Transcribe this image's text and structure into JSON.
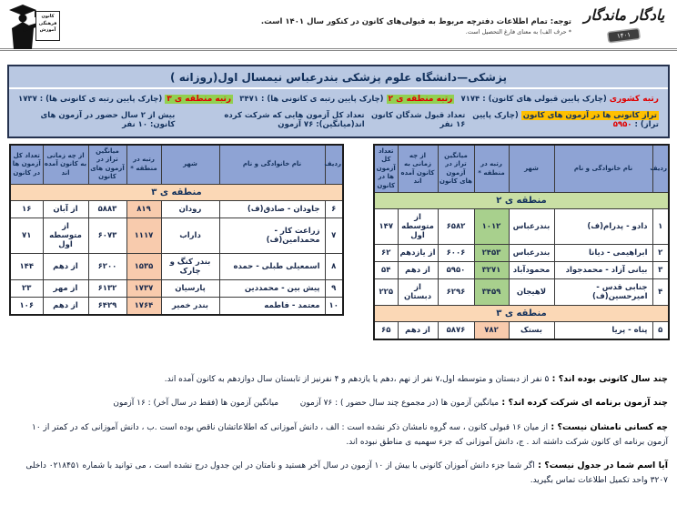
{
  "brand": {
    "title": "یادگار ماندگار",
    "year_badge": "۱۴۰۱",
    "logo_caption": "کانون فرهنگی آموزش"
  },
  "header_note": {
    "main": "توجه: تمام اطلاعات دفترچه مربوط به قبولی‌های کانون در کنکور سال ۱۴۰۱ است.",
    "sub": "* حرف الف) به معنای فارغ التحصیل است."
  },
  "title_bar": "پزشکی—دانشگاه علوم پزشکی بندرعباس نیمسال اول(روزانه )",
  "stats": {
    "national_rank": {
      "label": "رتبه کشوری",
      "desc": "(چارک پایین قبولی های کانون) :",
      "value": "۷۱۷۴"
    },
    "region2_rank": {
      "label": "رتبه منطقه ی ۲",
      "desc": "(چارک پایین رتبه ی کانونی ها) :",
      "value": "۳۴۷۱"
    },
    "region3_rank": {
      "label": "رتبه منطقه ی ۳",
      "desc": "(چارک پایین رتبه ی کانونی ها) :",
      "value": "۱۷۳۷"
    },
    "taraz": {
      "label": "تراز کانونی ها در آزمون های کانون",
      "desc": "(چارک پایین تراز) :",
      "value": "۵۹۵۰"
    },
    "accepted_count": "تعداد قبول شدگان کانون ۱۶ نفر",
    "exams_avg": "تعداد کل آزمون هایی که شرکت کرده اند(میانگین): ۷۶ آزمون",
    "presence": "بیش از ۲ سال حضور در آزمون های کانون: ۱۰ نفر"
  },
  "table": {
    "headers": [
      "ردیف",
      "نام خانوادگی و نام",
      "شهر",
      "رتبه در منطقه *",
      "میانگین تراز در آزمون های کانون",
      "از چه زمانی به کانون آمده اند",
      "تعداد کل آزمون ها در کانون"
    ]
  },
  "tables": {
    "right": {
      "sections": [
        {
          "band": "منطقه ی ۲",
          "color": "green",
          "rows": [
            {
              "no": "۱",
              "name": "دادو - پدرام(ف)",
              "city": "بندرعباس",
              "rank": "۱۰۱۲",
              "taraz": "۶۵۸۲",
              "since": "از متوسطه اول",
              "exams": "۱۴۷"
            },
            {
              "no": "۲",
              "name": "ابراهیمی - دیانا",
              "city": "بندرعباس",
              "rank": "۲۴۵۳",
              "taraz": "۶۰۰۶",
              "since": "از یازدهم",
              "exams": "۶۲"
            },
            {
              "no": "۳",
              "name": "بیانی آزاد - محمدجواد",
              "city": "محمودآباد",
              "rank": "۳۲۷۱",
              "taraz": "۵۹۵۰",
              "since": "از دهم",
              "exams": "۵۴"
            },
            {
              "no": "۴",
              "name": "جنابی قدس - امیرحسین(ف)",
              "city": "لاهیجان",
              "rank": "۳۴۵۹",
              "taraz": "۶۲۹۶",
              "since": "از دبستان",
              "exams": "۲۲۵"
            }
          ]
        },
        {
          "band": "منطقه ی ۳",
          "color": "peach",
          "rows": [
            {
              "no": "۵",
              "name": "پناه - پریا",
              "city": "بستک",
              "rank": "۷۸۲",
              "taraz": "۵۸۷۶",
              "since": "از دهم",
              "exams": "۶۵"
            }
          ]
        }
      ]
    },
    "left": {
      "sections": [
        {
          "band": "منطقه ی ۳",
          "color": "peach",
          "rows": [
            {
              "no": "۶",
              "name": "جاودان - صادق(ف)",
              "city": "رودان",
              "rank": "۸۱۹",
              "taraz": "۵۸۸۳",
              "since": "از آبان",
              "exams": "۱۶"
            },
            {
              "no": "۷",
              "name": "زراعت کار - محمدامین(ف)",
              "city": "داراب",
              "rank": "۱۱۱۷",
              "taraz": "۶۰۷۳",
              "since": "از متوسطه اول",
              "exams": "۷۱"
            },
            {
              "no": "۸",
              "name": "اسمعیلی طبلی - حمده",
              "city": "بندر کنگ و چارک",
              "rank": "۱۵۳۵",
              "taraz": "۶۲۰۰",
              "since": "از دهم",
              "exams": "۱۴۴"
            },
            {
              "no": "۹",
              "name": "پیش بین - محمددین",
              "city": "پارسیان",
              "rank": "۱۷۳۷",
              "taraz": "۶۱۳۲",
              "since": "از مهر",
              "exams": "۲۳"
            },
            {
              "no": "۱۰",
              "name": "معتمد - فاطمه",
              "city": "بندر خمیر",
              "rank": "۱۷۶۴",
              "taraz": "۶۴۲۹",
              "since": "از دهم",
              "exams": "۱۰۶"
            }
          ]
        }
      ]
    }
  },
  "footer_qa": [
    {
      "q": "چند سال کانونی بوده اند؟ :",
      "a": "۵ نفر از دبستان و متوسطه اول،۷ نفر از نهم ،دهم یا یازدهم و ۴ نفرنیز از تابستان سال دوازدهم به کانون آمده اند."
    },
    {
      "q": "چند آزمون برنامه ای شرکت کرده اند؟ :",
      "a": "میانگین آزمون ها (در مجموع چند سال حضور ) : ۷۶ آزمون    میانگین آزمون ها (فقط در سال آخر) : ۱۶ آزمون"
    },
    {
      "q": "چه کسانی نامشان نیست؟ :",
      "a": "از میان ۱۶ قبولی کانون ، سه گروه نامشان ذکر نشده است : الف ، دانش آموزانی که اطلاعاتشان ناقص بوده است .ب ، دانش آموزانی که در کمتر از ۱۰ آزمون برنامه ای کانون شرکت داشته اند . ج، دانش آموزانی که جزء سهمیه ی مناطق نبوده اند."
    },
    {
      "q": "آیا اسم شما در جدول نیست؟ :",
      "a": "اگر شما جزء دانش آموزان کانونی با بیش از ۱۰ آزمون در سال آخر هستید و نامتان در این جدول درج نشده است ، می توانید با شماره ۰۲۱۸۴۵۱ داخلی ۳۲۰۷ واحد تکمیل اطلاعات تماس بگیرید."
    }
  ],
  "colors": {
    "panel_blue": "#b9c8e2",
    "header_cell_blue": "#8ea3d4",
    "band_green": "#c9dfa4",
    "band_peach": "#fbd8b6",
    "rank_green": "#a8d08d",
    "rank_peach": "#f8cbad",
    "navy": "#13315c",
    "accent_red": "#e00000",
    "highlight_green": "#92d050",
    "highlight_yellow": "#ffc000"
  }
}
